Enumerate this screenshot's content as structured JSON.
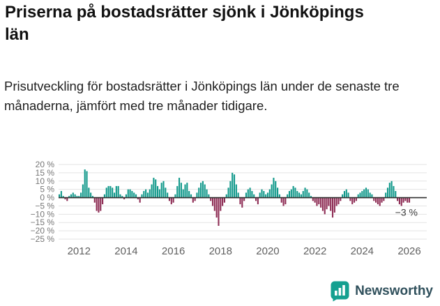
{
  "header": {
    "title": "Priserna på bostadsrätter sjönk i Jönköpings län",
    "subtitle": "Prisutveckling för bostadsrätter i Jönköpings län under de senaste tre månaderna, jämfört med tre månader tidigare."
  },
  "footer": {
    "brand": "Newsworthy",
    "logo_icon": "bar-chart-speech-bubble-icon"
  },
  "colors": {
    "positive": "#12998b",
    "negative": "#8e2d55",
    "zero_line": "#2e2e2e",
    "grid": "#e3e3e3",
    "axis_text": "#767676",
    "annotation": "#3c3c3c",
    "brand_teal": "#14a090"
  },
  "chart_data": {
    "type": "bar",
    "title": "Prisutveckling för bostadsrätter i Jönköpings län, tre månader jämfört med tre månader tidigare",
    "unit": "%",
    "frequency": "monthly",
    "x_start": "2011-03",
    "ylim": [
      -25,
      20
    ],
    "grid": true,
    "y_ticks": [
      20,
      15,
      10,
      5,
      0,
      -5,
      -10,
      -15,
      -20,
      -25
    ],
    "y_tick_labels": [
      "20 %",
      "15 %",
      "10 %",
      "5 %",
      "0 %",
      "−5 %",
      "−10 %",
      "−15 %",
      "−20 %",
      "−25 %"
    ],
    "x_tick_years": [
      2012,
      2014,
      2016,
      2018,
      2020,
      2022,
      2024,
      2026
    ],
    "x_tick_labels": [
      "2012",
      "2014",
      "2016",
      "2018",
      "2020",
      "2022",
      "2024",
      "2026"
    ],
    "annotation": {
      "text": "−3 %",
      "value": -3
    },
    "values": [
      2,
      4,
      1,
      -1,
      -2,
      1,
      2,
      3,
      2,
      1,
      1,
      3,
      8,
      17,
      16,
      6,
      3,
      1,
      -3,
      -8,
      -9,
      -8,
      -4,
      2,
      6,
      7,
      7,
      6,
      3,
      7,
      7,
      2,
      1,
      -1,
      2,
      5,
      5,
      4,
      3,
      2,
      -1,
      -3,
      2,
      4,
      5,
      3,
      5,
      8,
      12,
      11,
      7,
      5,
      9,
      10,
      6,
      3,
      -2,
      -4,
      -3,
      2,
      7,
      12,
      9,
      5,
      8,
      9,
      4,
      2,
      -3,
      -2,
      3,
      6,
      9,
      10,
      8,
      5,
      2,
      -2,
      -5,
      -8,
      -12,
      -17,
      -8,
      -5,
      -3,
      2,
      6,
      10,
      15,
      14,
      8,
      3,
      -4,
      -6,
      -2,
      3,
      5,
      6,
      4,
      2,
      -2,
      -4,
      3,
      5,
      4,
      2,
      3,
      5,
      8,
      12,
      10,
      6,
      2,
      -3,
      -5,
      -4,
      2,
      4,
      5,
      7,
      6,
      4,
      3,
      2,
      4,
      6,
      5,
      3,
      1,
      -2,
      -3,
      -5,
      -4,
      -6,
      -8,
      -10,
      -7,
      -5,
      -8,
      -12,
      -9,
      -5,
      -4,
      -2,
      2,
      4,
      5,
      3,
      -2,
      -4,
      -3,
      -2,
      2,
      3,
      4,
      5,
      6,
      5,
      3,
      2,
      -2,
      -3,
      -4,
      -5,
      -3,
      -2,
      3,
      6,
      9,
      10,
      7,
      4,
      -2,
      -4,
      -5,
      -3,
      -2,
      -3,
      -3
    ]
  }
}
